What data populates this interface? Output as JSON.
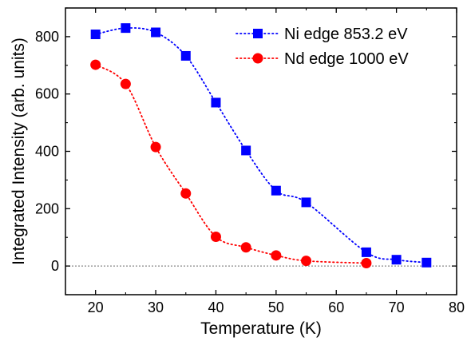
{
  "chart_data": {
    "type": "scatter",
    "xlabel": "Temperature (K)",
    "ylabel": "Integrated Intensity (arb. units)",
    "xlim": [
      15,
      80
    ],
    "ylim": [
      -100,
      900
    ],
    "xticks": [
      20,
      30,
      40,
      50,
      60,
      70,
      80
    ],
    "yticks": [
      0,
      200,
      400,
      600,
      800
    ],
    "xtick_labels": [
      "20",
      "30",
      "40",
      "50",
      "60",
      "70",
      "80"
    ],
    "ytick_labels": [
      "0",
      "200",
      "400",
      "600",
      "800"
    ],
    "grid": false,
    "zero_reference_line": true,
    "legend_position": "top-right",
    "series": [
      {
        "name": "Ni edge 853.2 eV",
        "marker": "square",
        "line": "dotted",
        "color": "#0000ff",
        "x": [
          20,
          25,
          30,
          35,
          40,
          45,
          50,
          55,
          65,
          70,
          75
        ],
        "y": [
          808,
          830,
          815,
          733,
          570,
          403,
          263,
          222,
          48,
          22,
          12
        ]
      },
      {
        "name": "Nd edge 1000 eV",
        "marker": "circle",
        "line": "dotted",
        "color": "#ff0000",
        "x": [
          20,
          25,
          30,
          35,
          40,
          45,
          50,
          55,
          65
        ],
        "y": [
          702,
          635,
          415,
          253,
          102,
          65,
          37,
          18,
          10
        ]
      }
    ]
  }
}
